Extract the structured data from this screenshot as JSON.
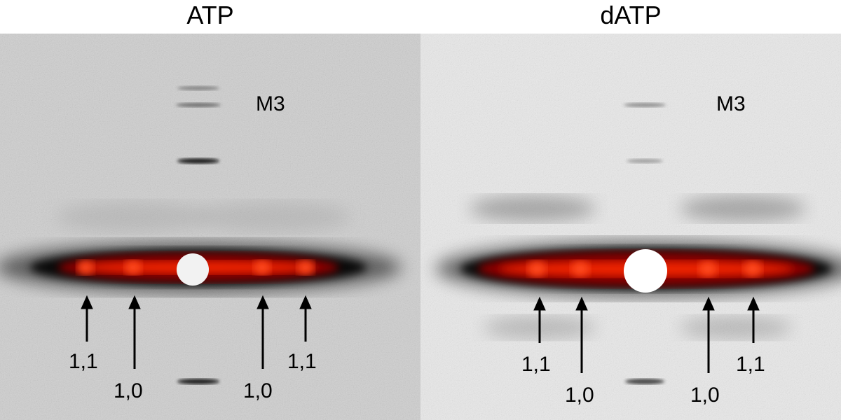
{
  "panels": [
    {
      "title": "ATP",
      "meridional_label": "M3",
      "arrow_labels": [
        "1,1",
        "1,0",
        "1,0",
        "1,1"
      ]
    },
    {
      "title": "dATP",
      "meridional_label": "M3",
      "arrow_labels": [
        "1,1",
        "1,0",
        "1,0",
        "1,1"
      ]
    }
  ],
  "colors": {
    "background_left": "#cfcfcf",
    "background_right": "#e9e9e9",
    "equator_core": "#ff2a00",
    "equator_glow": "#8a0000",
    "beamstop": "#f2f2f2"
  }
}
